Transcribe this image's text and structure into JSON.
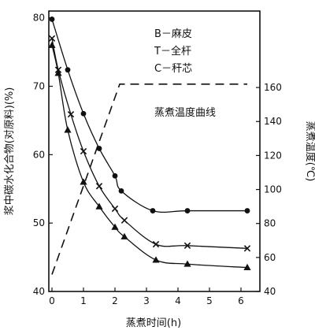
{
  "chart_data": {
    "type": "line",
    "title": "",
    "xlabel": "蒸煮时间(h)",
    "ylabel": "浆中碳水化合物(对原料)(%)",
    "y2label": "蒸煮温度(℃)",
    "xlim": [
      -0.1,
      6.6
    ],
    "ylim": [
      40,
      81
    ],
    "y2lim": [
      40,
      205
    ],
    "xticks": [
      0,
      1,
      2,
      3,
      4,
      5,
      6
    ],
    "yticks": [
      40,
      50,
      60,
      70,
      80
    ],
    "y2ticks": [
      40,
      60,
      80,
      100,
      120,
      140,
      160
    ],
    "legend": [
      {
        "symbol": "B",
        "text": "B－麻皮"
      },
      {
        "symbol": "T",
        "text": "T－全杆"
      },
      {
        "symbol": "C",
        "text": "C－秆芯"
      }
    ],
    "annotation": "蒸煮温度曲线",
    "series": [
      {
        "symbol": "circle",
        "x": [
          0,
          0.5,
          1.0,
          1.5,
          2.0,
          2.2,
          3.2,
          4.3,
          6.2
        ],
        "y": [
          79.8,
          72.4,
          66.0,
          60.9,
          56.9,
          54.7,
          51.8,
          51.8,
          51.8
        ]
      },
      {
        "symbol": "cross",
        "x": [
          0,
          0.2,
          0.6,
          1.0,
          1.5,
          2.0,
          2.3,
          3.3,
          4.3,
          6.2
        ],
        "y": [
          77.0,
          72.4,
          65.9,
          60.5,
          55.4,
          52.1,
          50.4,
          46.9,
          46.7,
          46.3
        ]
      },
      {
        "symbol": "triangle",
        "x": [
          0,
          0.2,
          0.5,
          1.0,
          1.5,
          2.0,
          2.3,
          3.3,
          4.3,
          6.2
        ],
        "y": [
          76.0,
          71.9,
          63.6,
          56.0,
          52.4,
          49.4,
          48.0,
          44.6,
          44.0,
          43.5
        ]
      },
      {
        "name": "蒸煮温度曲线",
        "style": "dashed",
        "axis": "y2",
        "x": [
          0,
          2.15,
          6.2
        ],
        "y": [
          50,
          162,
          162
        ]
      }
    ]
  }
}
